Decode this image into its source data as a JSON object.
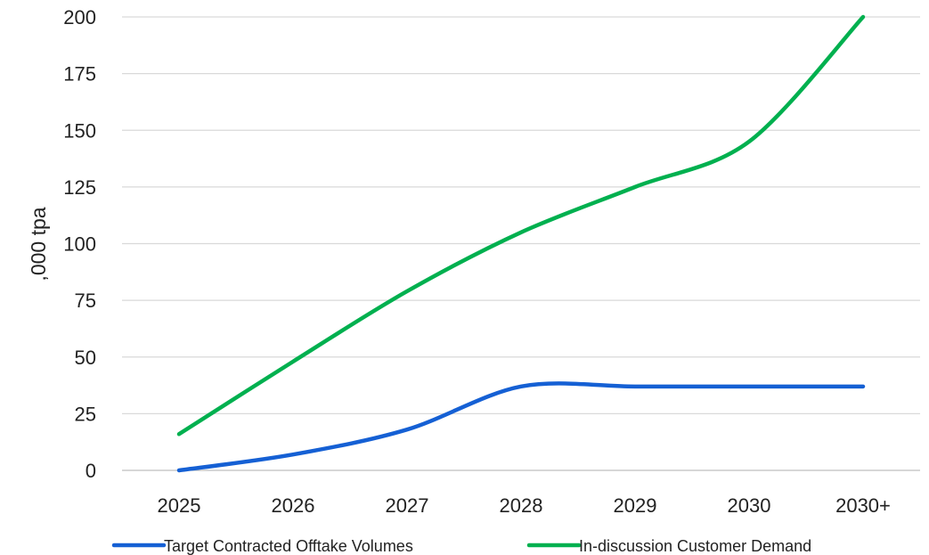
{
  "chart_data": {
    "type": "line",
    "categories": [
      "2025",
      "2026",
      "2027",
      "2028",
      "2029",
      "2030",
      "2030+"
    ],
    "series": [
      {
        "name": "Target Contracted Offtake Volumes",
        "values": [
          0,
          7,
          18,
          37,
          37,
          37,
          37
        ],
        "color": "#1560d4"
      },
      {
        "name": "In-discussion Customer Demand",
        "values": [
          16,
          48,
          79,
          105,
          125,
          145,
          200
        ],
        "color": "#00b04f"
      }
    ],
    "title": "",
    "xlabel": "",
    "ylabel": ",000 tpa",
    "ylim": [
      0,
      200
    ],
    "yticks": [
      0,
      25,
      50,
      75,
      100,
      125,
      150,
      175,
      200
    ],
    "grid": true,
    "legend": "bottom",
    "smooth": true
  }
}
